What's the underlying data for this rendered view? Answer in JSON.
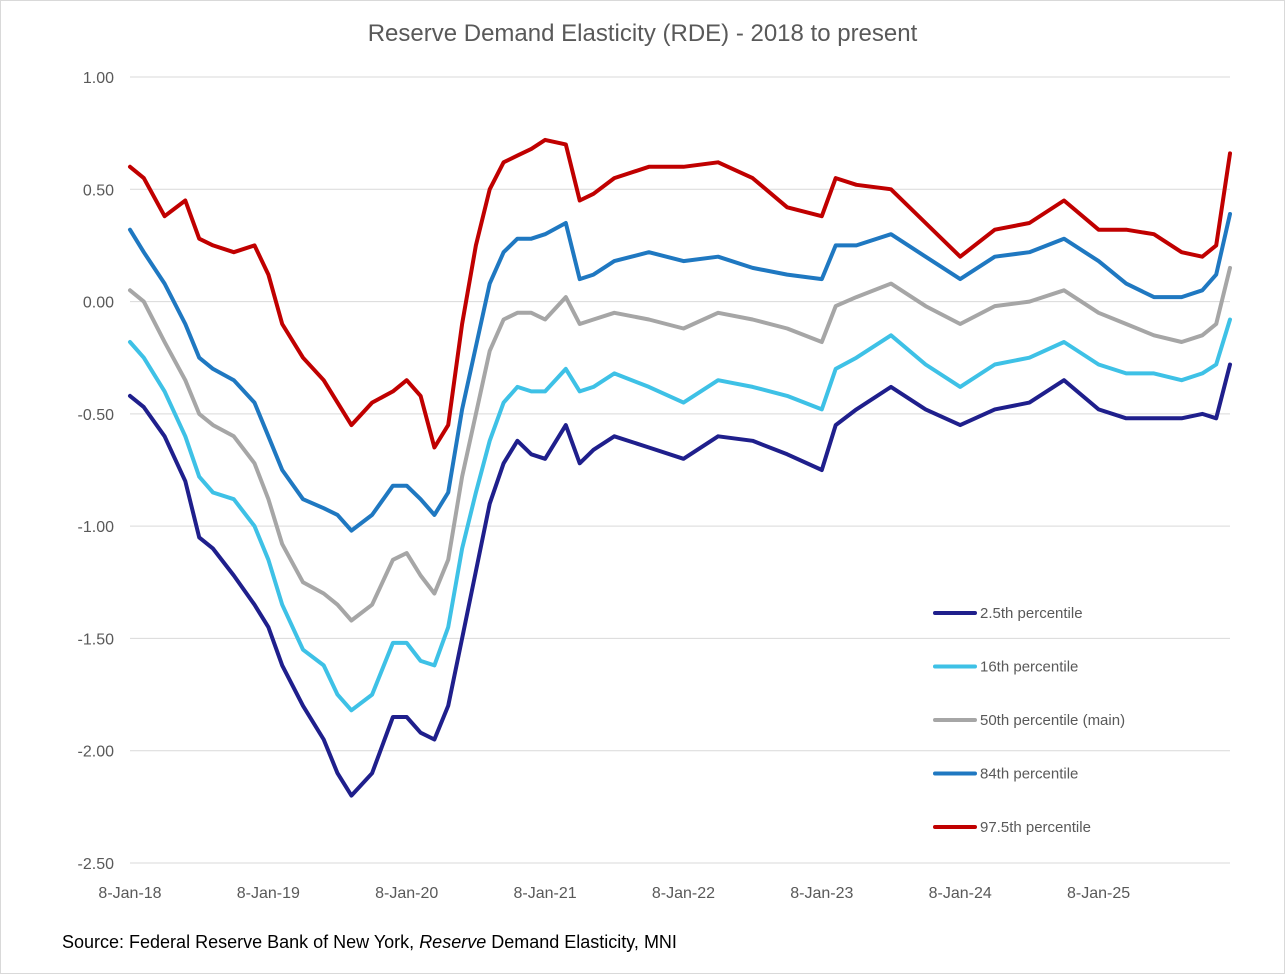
{
  "chart_data": {
    "type": "line",
    "title": "Reserve Demand Elasticity (RDE) - 2018 to present",
    "xlabel": "",
    "ylabel": "",
    "ylim": [
      -2.5,
      1.0
    ],
    "y_ticks": [
      "1.00",
      "0.50",
      "0.00",
      "-0.50",
      "-1.00",
      "-1.50",
      "-2.00",
      "-2.50"
    ],
    "y_tick_values": [
      1.0,
      0.5,
      0.0,
      -0.5,
      -1.0,
      -1.5,
      -2.0,
      -2.5
    ],
    "x_range": [
      2018.0,
      2025.95
    ],
    "x_ticks": [
      "8-Jan-18",
      "8-Jan-19",
      "8-Jan-20",
      "8-Jan-21",
      "8-Jan-22",
      "8-Jan-23",
      "8-Jan-24",
      "8-Jan-25"
    ],
    "x_tick_values": [
      2018.0,
      2019.0,
      2020.0,
      2021.0,
      2022.0,
      2023.0,
      2024.0,
      2025.0
    ],
    "grid": true,
    "legend_position": "bottom-right",
    "x": [
      2018.0,
      2018.1,
      2018.25,
      2018.4,
      2018.5,
      2018.6,
      2018.75,
      2018.9,
      2019.0,
      2019.1,
      2019.25,
      2019.4,
      2019.5,
      2019.6,
      2019.75,
      2019.9,
      2020.0,
      2020.1,
      2020.2,
      2020.3,
      2020.4,
      2020.5,
      2020.6,
      2020.7,
      2020.8,
      2020.9,
      2021.0,
      2021.15,
      2021.25,
      2021.35,
      2021.5,
      2021.75,
      2022.0,
      2022.25,
      2022.5,
      2022.75,
      2023.0,
      2023.1,
      2023.25,
      2023.5,
      2023.75,
      2024.0,
      2024.25,
      2024.5,
      2024.75,
      2025.0,
      2025.2,
      2025.4,
      2025.6,
      2025.75,
      2025.85,
      2025.95
    ],
    "series": [
      {
        "name": "2.5th percentile",
        "color": "#1f1f8c",
        "values": [
          -0.42,
          -0.47,
          -0.6,
          -0.8,
          -1.05,
          -1.1,
          -1.22,
          -1.35,
          -1.45,
          -1.62,
          -1.8,
          -1.95,
          -2.1,
          -2.2,
          -2.1,
          -1.85,
          -1.85,
          -1.92,
          -1.95,
          -1.8,
          -1.5,
          -1.2,
          -0.9,
          -0.72,
          -0.62,
          -0.68,
          -0.7,
          -0.55,
          -0.72,
          -0.66,
          -0.6,
          -0.65,
          -0.7,
          -0.6,
          -0.62,
          -0.68,
          -0.75,
          -0.55,
          -0.48,
          -0.38,
          -0.48,
          -0.55,
          -0.48,
          -0.45,
          -0.35,
          -0.48,
          -0.52,
          -0.52,
          -0.52,
          -0.5,
          -0.52,
          -0.28
        ]
      },
      {
        "name": "16th percentile",
        "color": "#3ec1e6",
        "values": [
          -0.18,
          -0.25,
          -0.4,
          -0.6,
          -0.78,
          -0.85,
          -0.88,
          -1.0,
          -1.15,
          -1.35,
          -1.55,
          -1.62,
          -1.75,
          -1.82,
          -1.75,
          -1.52,
          -1.52,
          -1.6,
          -1.62,
          -1.45,
          -1.1,
          -0.85,
          -0.62,
          -0.45,
          -0.38,
          -0.4,
          -0.4,
          -0.3,
          -0.4,
          -0.38,
          -0.32,
          -0.38,
          -0.45,
          -0.35,
          -0.38,
          -0.42,
          -0.48,
          -0.3,
          -0.25,
          -0.15,
          -0.28,
          -0.38,
          -0.28,
          -0.25,
          -0.18,
          -0.28,
          -0.32,
          -0.32,
          -0.35,
          -0.32,
          -0.28,
          -0.08
        ]
      },
      {
        "name": "50th percentile (main)",
        "color": "#a6a6a6",
        "values": [
          0.05,
          0.0,
          -0.18,
          -0.35,
          -0.5,
          -0.55,
          -0.6,
          -0.72,
          -0.88,
          -1.08,
          -1.25,
          -1.3,
          -1.35,
          -1.42,
          -1.35,
          -1.15,
          -1.12,
          -1.22,
          -1.3,
          -1.15,
          -0.78,
          -0.5,
          -0.22,
          -0.08,
          -0.05,
          -0.05,
          -0.08,
          0.02,
          -0.1,
          -0.08,
          -0.05,
          -0.08,
          -0.12,
          -0.05,
          -0.08,
          -0.12,
          -0.18,
          -0.02,
          0.02,
          0.08,
          -0.02,
          -0.1,
          -0.02,
          0.0,
          0.05,
          -0.05,
          -0.1,
          -0.15,
          -0.18,
          -0.15,
          -0.1,
          0.15
        ]
      },
      {
        "name": "84th percentile",
        "color": "#1f78c1",
        "values": [
          0.32,
          0.22,
          0.08,
          -0.1,
          -0.25,
          -0.3,
          -0.35,
          -0.45,
          -0.6,
          -0.75,
          -0.88,
          -0.92,
          -0.95,
          -1.02,
          -0.95,
          -0.82,
          -0.82,
          -0.88,
          -0.95,
          -0.85,
          -0.48,
          -0.2,
          0.08,
          0.22,
          0.28,
          0.28,
          0.3,
          0.35,
          0.1,
          0.12,
          0.18,
          0.22,
          0.18,
          0.2,
          0.15,
          0.12,
          0.1,
          0.25,
          0.25,
          0.3,
          0.2,
          0.1,
          0.2,
          0.22,
          0.28,
          0.18,
          0.08,
          0.02,
          0.02,
          0.05,
          0.12,
          0.39
        ]
      },
      {
        "name": "97.5th percentile",
        "color": "#c00000",
        "values": [
          0.6,
          0.55,
          0.38,
          0.45,
          0.28,
          0.25,
          0.22,
          0.25,
          0.12,
          -0.1,
          -0.25,
          -0.35,
          -0.45,
          -0.55,
          -0.45,
          -0.4,
          -0.35,
          -0.42,
          -0.65,
          -0.55,
          -0.1,
          0.25,
          0.5,
          0.62,
          0.65,
          0.68,
          0.72,
          0.7,
          0.45,
          0.48,
          0.55,
          0.6,
          0.6,
          0.62,
          0.55,
          0.42,
          0.38,
          0.55,
          0.52,
          0.5,
          0.35,
          0.2,
          0.32,
          0.35,
          0.45,
          0.32,
          0.32,
          0.3,
          0.22,
          0.2,
          0.25,
          0.66
        ]
      }
    ]
  },
  "source": {
    "prefix": "Source: Federal Reserve Bank of New York, ",
    "italic": "Reserve",
    "suffix": " Demand Elasticity, MNI"
  }
}
